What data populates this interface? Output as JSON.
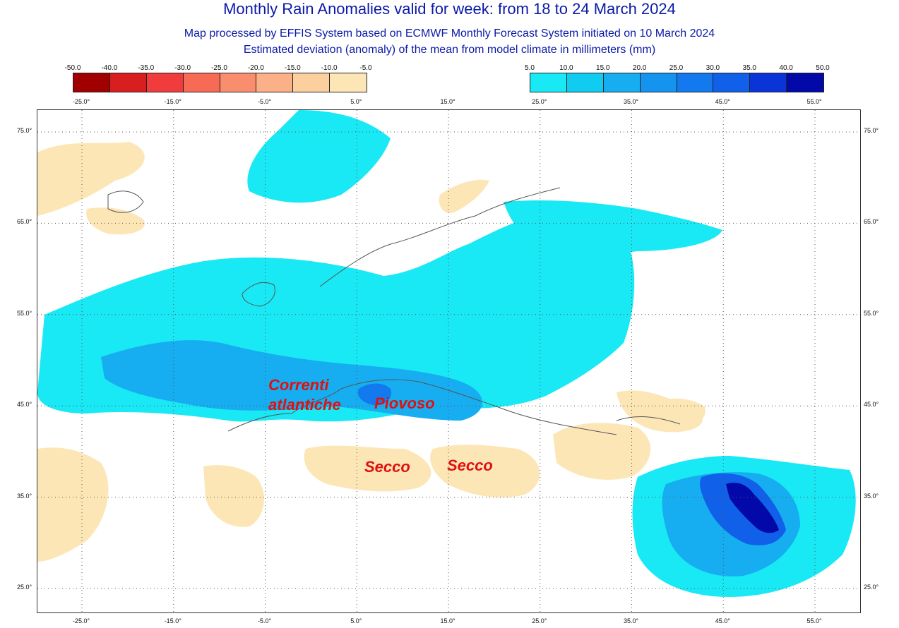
{
  "header": {
    "title": "Monthly Rain Anomalies valid for week: from 18 to 24 March 2024",
    "subtitle1": "Map processed by EFFIS System based on ECMWF Monthly Forecast System initiated on 10 March 2024",
    "subtitle2": "Estimated deviation (anomaly) of the mean from model climate in millimeters (mm)"
  },
  "legend": {
    "negative": {
      "labels": [
        "-50.0",
        "-40.0",
        "-35.0",
        "-30.0",
        "-25.0",
        "-20.0",
        "-15.0",
        "-10.0",
        "-5.0"
      ],
      "colors": [
        "#a00000",
        "#d81e1e",
        "#f03c3c",
        "#f66a56",
        "#f98e6e",
        "#fbb088",
        "#fccf9e",
        "#fde6b6"
      ]
    },
    "positive": {
      "labels": [
        "5.0",
        "10.0",
        "15.0",
        "20.0",
        "25.0",
        "30.0",
        "35.0",
        "40.0",
        "50.0"
      ],
      "colors": [
        "#19e8f5",
        "#10ccf0",
        "#16aef0",
        "#1494ee",
        "#127aee",
        "#1060ea",
        "#0a34d8",
        "#0308a8"
      ]
    }
  },
  "axes": {
    "lon_labels": [
      "-25.0°",
      "-15.0°",
      "-5.0°",
      "5.0°",
      "15.0°",
      "25.0°",
      "35.0°",
      "45.0°",
      "55.0°"
    ],
    "lat_labels": [
      "75.0°",
      "65.0°",
      "55.0°",
      "45.0°",
      "35.0°",
      "25.0°"
    ]
  },
  "annotations": {
    "correnti_line1": "Correnti",
    "correnti_line2": "atlantiche",
    "piovoso": "Piovoso",
    "secco_west": "Secco",
    "secco_east": "Secco"
  },
  "colors": {
    "wet": "#19e8f5",
    "wet2": "#16aef0",
    "dry": "#fde6b6",
    "dry2": "#fccf9e",
    "border": "#555555"
  }
}
